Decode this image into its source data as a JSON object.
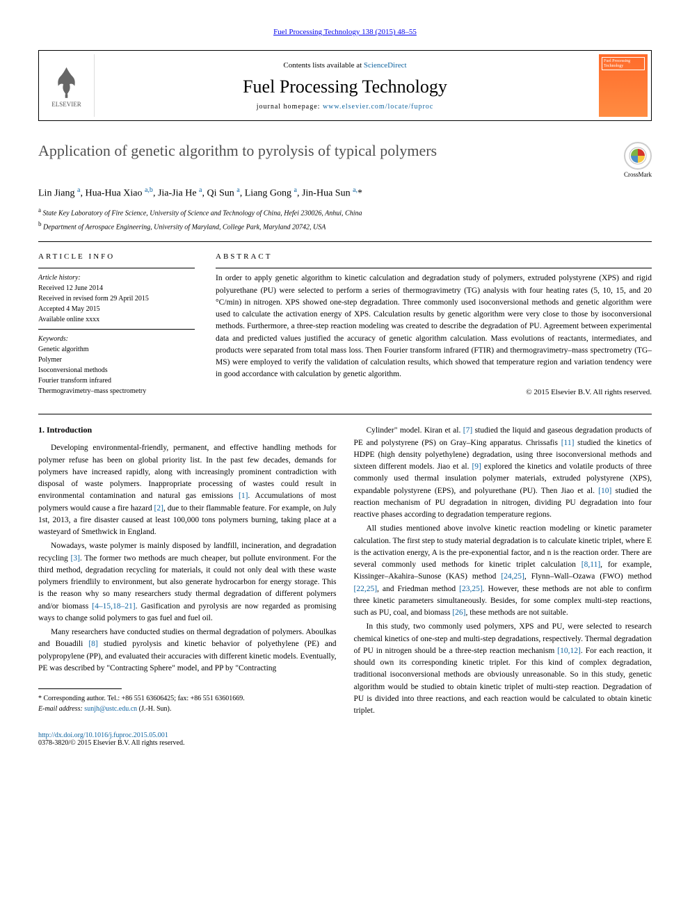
{
  "journal_link_top": "Fuel Processing Technology 138 (2015) 48–55",
  "header": {
    "contents_text": "Contents lists available at ",
    "contents_link": "ScienceDirect",
    "journal_name": "Fuel Processing Technology",
    "homepage_label": "journal homepage: ",
    "homepage_url": "www.elsevier.com/locate/fuproc",
    "elsevier_label": "ELSEVIER",
    "cover_text": "Fuel Processing Technology"
  },
  "crossmark": "CrossMark",
  "title": "Application of genetic algorithm to pyrolysis of typical polymers",
  "authors_html": "Lin Jiang <sup>a</sup>, Hua-Hua Xiao <sup>a,b</sup>, Jia-Jia He <sup>a</sup>, Qi Sun <sup>a</sup>, Liang Gong <sup>a</sup>, Jin-Hua Sun <sup>a,</sup>*",
  "affiliations": [
    {
      "sup": "a",
      "text": "State Key Laboratory of Fire Science, University of Science and Technology of China, Hefei 230026, Anhui, China"
    },
    {
      "sup": "b",
      "text": "Department of Aerospace Engineering, University of Maryland, College Park, Maryland 20742, USA"
    }
  ],
  "article_info_label": "article info",
  "abstract_label": "abstract",
  "history": {
    "heading": "Article history:",
    "received": "Received 12 June 2014",
    "revised": "Received in revised form 29 April 2015",
    "accepted": "Accepted 4 May 2015",
    "online": "Available online xxxx"
  },
  "keywords": {
    "heading": "Keywords:",
    "items": [
      "Genetic algorithm",
      "Polymer",
      "Isoconversional methods",
      "Fourier transform infrared",
      "Thermogravimetry–mass spectrometry"
    ]
  },
  "abstract_text": "In order to apply genetic algorithm to kinetic calculation and degradation study of polymers, extruded polystyrene (XPS) and rigid polyurethane (PU) were selected to perform a series of thermogravimetry (TG) analysis with four heating rates (5, 10, 15, and 20 °C/min) in nitrogen. XPS showed one-step degradation. Three commonly used isoconversional methods and genetic algorithm were used to calculate the activation energy of XPS. Calculation results by genetic algorithm were very close to those by isoconversional methods. Furthermore, a three-step reaction modeling was created to describe the degradation of PU. Agreement between experimental data and predicted values justified the accuracy of genetic algorithm calculation. Mass evolutions of reactants, intermediates, and products were separated from total mass loss. Then Fourier transform infrared (FTIR) and thermogravimetry–mass spectrometry (TG–MS) were employed to verify the validation of calculation results, which showed that temperature region and variation tendency were in good accordance with calculation by genetic algorithm.",
  "copyright": "© 2015 Elsevier B.V. All rights reserved.",
  "intro_heading": "1. Introduction",
  "col1_paras": [
    "Developing environmental-friendly, permanent, and effective handling methods for polymer refuse has been on global priority list. In the past few decades, demands for polymers have increased rapidly, along with increasingly prominent contradiction with disposal of waste polymers. Inappropriate processing of wastes could result in environmental contamination and natural gas emissions <a href=\"#\">[1]</a>. Accumulations of most polymers would cause a fire hazard <a href=\"#\">[2]</a>, due to their flammable feature. For example, on July 1st, 2013, a fire disaster caused at least 100,000 tons polymers burning, taking place at a wasteyard of Smethwick in England.",
    "Nowadays, waste polymer is mainly disposed by landfill, incineration, and degradation recycling <a href=\"#\">[3]</a>. The former two methods are much cheaper, but pollute environment. For the third method, degradation recycling for materials, it could not only deal with these waste polymers friendlily to environment, but also generate hydrocarbon for energy storage. This is the reason why so many researchers study thermal degradation of different polymers and/or biomass <a href=\"#\">[4–15,18–21]</a>. Gasification and pyrolysis are now regarded as promising ways to change solid polymers to gas fuel and fuel oil.",
    "Many researchers have conducted studies on thermal degradation of polymers. Aboulkas and Bouadili <a href=\"#\">[8]</a> studied pyrolysis and kinetic behavior of polyethylene (PE) and polypropylene (PP), and evaluated their accuracies with different kinetic models. Eventually, PE was described by \"Contracting Sphere\" model, and PP by \"Contracting"
  ],
  "col2_paras": [
    "Cylinder\" model. Kiran et al. <a href=\"#\">[7]</a> studied the liquid and gaseous degradation products of PE and polystyrene (PS) on Gray–King apparatus. Chrissafis <a href=\"#\">[11]</a> studied the kinetics of HDPE (high density polyethylene) degradation, using three isoconversional methods and sixteen different models. Jiao et al. <a href=\"#\">[9]</a> explored the kinetics and volatile products of three commonly used thermal insulation polymer materials, extruded polystyrene (XPS), expandable polystyrene (EPS), and polyurethane (PU). Then Jiao et al. <a href=\"#\">[10]</a> studied the reaction mechanism of PU degradation in nitrogen, dividing PU degradation into four reactive phases according to degradation temperature regions.",
    "All studies mentioned above involve kinetic reaction modeling or kinetic parameter calculation. The first step to study material degradation is to calculate kinetic triplet, where E is the activation energy, A is the pre-exponential factor, and n is the reaction order. There are several commonly used methods for kinetic triplet calculation <a href=\"#\">[8,11]</a>, for example, Kissinger–Akahira–Sunose (KAS) method <a href=\"#\">[24,25]</a>, Flynn–Wall–Ozawa (FWO) method <a href=\"#\">[22,25]</a>, and Friedman method <a href=\"#\">[23,25]</a>. However, these methods are not able to confirm three kinetic parameters simultaneously. Besides, for some complex multi-step reactions, such as PU, coal, and biomass <a href=\"#\">[26]</a>, these methods are not suitable.",
    "In this study, two commonly used polymers, XPS and PU, were selected to research chemical kinetics of one-step and multi-step degradations, respectively. Thermal degradation of PU in nitrogen should be a three-step reaction mechanism <a href=\"#\">[10,12]</a>. For each reaction, it should own its corresponding kinetic triplet. For this kind of complex degradation, traditional isoconversional methods are obviously unreasonable. So in this study, genetic algorithm would be studied to obtain kinetic triplet of multi-step reaction. Degradation of PU is divided into three reactions, and each reaction would be calculated to obtain kinetic triplet."
  ],
  "corresp": {
    "label": "* Corresponding author. Tel.: +86 551 63606425; fax: +86 551 63601669.",
    "email_label": "E-mail address:",
    "email": "sunjh@ustc.edu.cn",
    "email_person": "(J.-H. Sun)."
  },
  "doi": {
    "url": "http://dx.doi.org/10.1016/j.fuproc.2015.05.001",
    "issn_copyright": "0378-3820/© 2015 Elsevier B.V. All rights reserved."
  },
  "colors": {
    "link": "#1064a0",
    "text": "#000000",
    "title": "#505050",
    "cover_orange": "#ff6b2b"
  }
}
